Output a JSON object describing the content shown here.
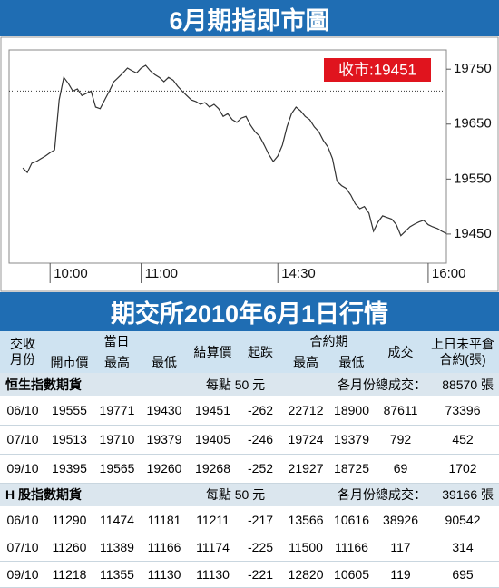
{
  "header": {
    "title": "6月期指即市圖"
  },
  "chart_data": {
    "type": "line",
    "color": "#333333",
    "categories": [
      null,
      null,
      null,
      null,
      null,
      null,
      null,
      null,
      null,
      "10:00",
      null,
      null,
      null,
      null,
      null,
      null,
      null,
      null,
      null,
      null,
      null,
      null,
      null,
      null,
      null,
      null,
      null,
      null,
      null,
      "11:00",
      null,
      null,
      null,
      null,
      null,
      null,
      null,
      null,
      null,
      null,
      null,
      null,
      null,
      null,
      null,
      null,
      null,
      null,
      null,
      null,
      null,
      null,
      null,
      null,
      null,
      null,
      null,
      null,
      null,
      "14:30",
      null,
      null,
      null,
      null,
      null,
      null,
      null,
      null,
      null,
      null,
      null,
      null,
      null,
      null,
      null,
      null,
      null,
      null,
      null,
      null,
      null,
      null,
      null,
      null,
      null,
      null,
      null,
      null,
      null,
      null,
      null,
      null,
      "16:00",
      null,
      null,
      null,
      null
    ],
    "values": [
      null,
      null,
      null,
      19570,
      19562,
      19579,
      19582,
      19587,
      19592,
      19598,
      19603,
      19694,
      19735,
      19724,
      19710,
      19714,
      19702,
      19706,
      19710,
      19681,
      19678,
      19694,
      19710,
      19727,
      19735,
      19743,
      19752,
      19747,
      19743,
      19752,
      19757,
      19747,
      19740,
      19735,
      19727,
      19735,
      19730,
      19719,
      19710,
      19702,
      19694,
      19691,
      19686,
      19689,
      19681,
      19686,
      19678,
      19664,
      19669,
      19658,
      19653,
      19661,
      19664,
      19648,
      19636,
      19628,
      19612,
      19595,
      19582,
      19592,
      19612,
      19645,
      19669,
      19681,
      19674,
      19664,
      19658,
      19645,
      19636,
      19620,
      19608,
      19587,
      19546,
      19538,
      19533,
      19521,
      19505,
      19496,
      19500,
      19488,
      19455,
      19472,
      19483,
      19480,
      19477,
      19467,
      19447,
      19455,
      19463,
      19468,
      19472,
      19475,
      19467,
      19463,
      19460,
      19455,
      19451
    ],
    "ylim": [
      19397,
      19785
    ],
    "yticks": [
      19450,
      19550,
      19650,
      19750
    ],
    "reference_line": 19710,
    "annotation": "收市:19451"
  },
  "table": {
    "title": "期交所2010年6月1日行情",
    "columns": {
      "month": [
        "交收",
        "月份"
      ],
      "day": "當日",
      "open": "開市價",
      "high": "最高",
      "low": "最低",
      "settle": "結算價",
      "change": "起跌",
      "contract": "合約期",
      "c_high": "最高",
      "c_low": "最低",
      "volume": "成交",
      "oi": [
        "上日未平倉",
        "合約(張)"
      ]
    },
    "sections": [
      {
        "title": "恒生指數期貨",
        "point_value": "每點 50 元",
        "total_label": "各月份總成交：",
        "total": "88570 張",
        "rows": [
          [
            "06/10",
            19555,
            19771,
            19430,
            19451,
            -262,
            22712,
            18900,
            87611,
            73396
          ],
          [
            "07/10",
            19513,
            19710,
            19379,
            19405,
            -246,
            19724,
            19379,
            792,
            452
          ],
          [
            "09/10",
            19395,
            19565,
            19260,
            19268,
            -252,
            21927,
            18725,
            69,
            1702
          ]
        ]
      },
      {
        "title": "H 股指數期貨",
        "point_value": "每點 50 元",
        "total_label": "各月份總成交：",
        "total": "39166 張",
        "rows": [
          [
            "06/10",
            11290,
            11474,
            11181,
            11211,
            -217,
            13566,
            10616,
            38926,
            90542
          ],
          [
            "07/10",
            11260,
            11389,
            11166,
            11174,
            -225,
            11500,
            11166,
            117,
            314
          ],
          [
            "09/10",
            11218,
            11355,
            11130,
            11130,
            -221,
            12820,
            10605,
            119,
            695
          ]
        ]
      }
    ]
  }
}
